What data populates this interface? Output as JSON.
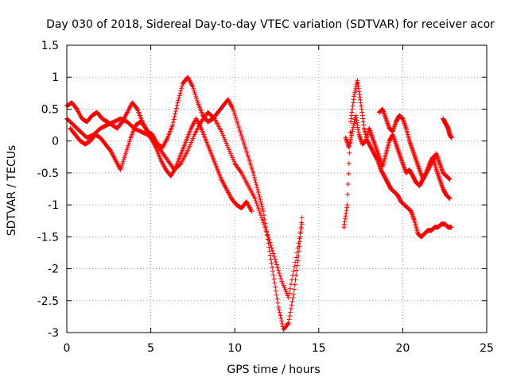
{
  "chart_data": {
    "type": "scatter",
    "title": "Day 030 of 2018, Sidereal Day-to-day VTEC variation (SDTVAR) for receiver acor",
    "xlabel": "GPS time / hours",
    "ylabel": "SDTVAR / TECUs",
    "xlim": [
      0,
      25
    ],
    "ylim": [
      -3,
      1.5
    ],
    "xticks": [
      "0",
      "5",
      "10",
      "15",
      "20",
      "25"
    ],
    "yticks": [
      "-3",
      "-2.5",
      "-2",
      "-1.5",
      "-1",
      "-0.5",
      "0",
      "0.5",
      "1",
      "1.5"
    ],
    "grid": true,
    "marker": "plus",
    "color": "#ff0000",
    "series": [
      {
        "x": [
          0,
          0.3,
          0.6,
          0.9,
          1.2,
          1.5,
          1.8,
          2.1,
          2.4,
          2.7,
          3.0,
          3.3,
          3.6,
          3.9,
          4.2,
          4.5,
          4.8,
          5.1,
          5.4,
          5.7,
          6.0,
          6.3,
          6.6,
          6.9,
          7.2,
          7.5,
          7.8,
          8.1,
          8.4,
          8.7,
          9.0,
          9.3,
          9.6,
          9.9,
          10.2,
          10.5,
          10.8,
          11.1,
          11.4,
          11.7,
          12.0,
          12.3,
          12.6,
          12.9,
          13.2,
          13.5,
          13.8,
          14.0
        ],
        "y": [
          0.55,
          0.6,
          0.5,
          0.35,
          0.3,
          0.4,
          0.45,
          0.35,
          0.3,
          0.25,
          0.2,
          0.3,
          0.45,
          0.6,
          0.5,
          0.3,
          0.15,
          0.1,
          -0.05,
          -0.1,
          0.05,
          0.25,
          0.6,
          0.9,
          1.0,
          0.85,
          0.6,
          0.4,
          0.3,
          0.35,
          0.45,
          0.55,
          0.65,
          0.5,
          0.25,
          0.0,
          -0.25,
          -0.5,
          -0.8,
          -1.1,
          -1.6,
          -2.1,
          -2.6,
          -2.95,
          -2.85,
          -2.4,
          -1.8,
          -1.2
        ]
      },
      {
        "x": [
          0,
          0.4,
          0.8,
          1.2,
          1.6,
          2.0,
          2.4,
          2.8,
          3.2,
          3.6,
          4.0,
          4.4,
          4.8,
          5.2,
          5.6,
          6.0,
          6.4,
          6.8,
          7.2,
          7.6,
          8.0,
          8.4,
          8.8,
          9.2,
          9.6,
          10.0,
          10.4,
          10.8,
          11.2,
          11.6,
          12.0,
          12.4,
          12.8,
          13.2,
          13.6,
          14.0
        ],
        "y": [
          0.35,
          0.25,
          0.15,
          0.05,
          0.1,
          0.2,
          0.25,
          0.3,
          0.35,
          0.3,
          0.2,
          0.15,
          0.1,
          0.0,
          -0.15,
          -0.3,
          -0.45,
          -0.35,
          -0.15,
          0.1,
          0.3,
          0.45,
          0.35,
          0.15,
          -0.1,
          -0.35,
          -0.5,
          -0.7,
          -0.9,
          -1.2,
          -1.5,
          -1.85,
          -2.2,
          -2.45,
          -1.9,
          -1.3
        ]
      },
      {
        "x": [
          0.2,
          0.5,
          0.8,
          1.1,
          1.4,
          1.7,
          2.0,
          2.3,
          2.6,
          2.9,
          3.2,
          3.5,
          3.8,
          4.1,
          4.4,
          4.7,
          5.0,
          5.3,
          5.6,
          5.9,
          6.2,
          6.5,
          6.8,
          7.1,
          7.4,
          7.7,
          8.0,
          8.3,
          8.6,
          8.9,
          9.2,
          9.5,
          9.8,
          10.1,
          10.4,
          10.7,
          11.0
        ],
        "y": [
          0.2,
          0.1,
          0.0,
          -0.05,
          0.0,
          0.1,
          0.05,
          -0.05,
          -0.15,
          -0.3,
          -0.45,
          -0.2,
          0.05,
          0.25,
          0.3,
          0.2,
          0.05,
          -0.1,
          -0.3,
          -0.45,
          -0.55,
          -0.4,
          -0.2,
          0.0,
          0.2,
          0.35,
          0.2,
          0.0,
          -0.2,
          -0.4,
          -0.6,
          -0.75,
          -0.9,
          -1.0,
          -1.05,
          -0.95,
          -1.1
        ]
      },
      {
        "x": [
          16.5,
          16.7,
          16.9,
          17.1,
          17.3,
          17.5,
          17.7,
          17.9,
          18.1,
          18.3,
          18.5,
          18.7,
          18.9,
          19.1,
          19.3,
          19.5,
          19.7,
          19.9,
          20.1,
          20.3,
          20.5,
          20.7,
          20.9,
          21.1,
          21.3,
          21.5,
          21.7,
          21.9,
          22.1,
          22.3,
          22.5,
          22.7,
          22.9
        ],
        "y": [
          -1.35,
          -1.0,
          0.3,
          0.7,
          0.95,
          0.6,
          0.2,
          0.0,
          -0.1,
          -0.2,
          -0.3,
          -0.45,
          -0.55,
          -0.65,
          -0.75,
          -0.8,
          -0.85,
          -0.95,
          -1.0,
          -1.05,
          -1.1,
          -1.25,
          -1.45,
          -1.5,
          -1.45,
          -1.4,
          -1.4,
          -1.35,
          -1.35,
          -1.3,
          -1.3,
          -1.35,
          -1.35
        ]
      },
      {
        "x": [
          16.6,
          16.8,
          17.0,
          17.2,
          17.4,
          17.6,
          17.8,
          18.0,
          18.2,
          18.4,
          18.6,
          18.8,
          19.0,
          19.2,
          19.4,
          19.6,
          19.8,
          20.0,
          20.2,
          20.4,
          20.6,
          20.8,
          21.0,
          21.2,
          21.4,
          21.6,
          21.8,
          22.0,
          22.2,
          22.4,
          22.6,
          22.8
        ],
        "y": [
          0.05,
          -0.1,
          0.15,
          0.4,
          0.1,
          -0.05,
          0.0,
          0.2,
          0.05,
          -0.1,
          -0.25,
          -0.4,
          -0.2,
          0.0,
          0.1,
          -0.05,
          -0.2,
          -0.35,
          -0.5,
          -0.45,
          -0.55,
          -0.65,
          -0.7,
          -0.6,
          -0.5,
          -0.35,
          -0.25,
          -0.45,
          -0.6,
          -0.75,
          -0.85,
          -0.9
        ]
      },
      {
        "x": [
          18.6,
          18.8,
          19.0,
          19.2,
          19.4,
          19.6,
          19.8,
          20.0,
          20.2,
          20.4,
          20.6,
          20.8,
          21.0,
          21.2,
          21.4,
          21.6,
          21.8,
          22.0,
          22.2,
          22.4,
          22.6,
          22.8
        ],
        "y": [
          0.45,
          0.5,
          0.35,
          0.2,
          0.15,
          0.3,
          0.4,
          0.35,
          0.2,
          0.0,
          -0.15,
          -0.3,
          -0.45,
          -0.6,
          -0.5,
          -0.4,
          -0.3,
          -0.2,
          -0.35,
          -0.5,
          -0.55,
          -0.6
        ]
      },
      {
        "x": [
          22.4,
          22.5,
          22.6,
          22.7,
          22.8,
          22.9
        ],
        "y": [
          0.35,
          0.3,
          0.25,
          0.2,
          0.1,
          0.05
        ]
      }
    ]
  }
}
